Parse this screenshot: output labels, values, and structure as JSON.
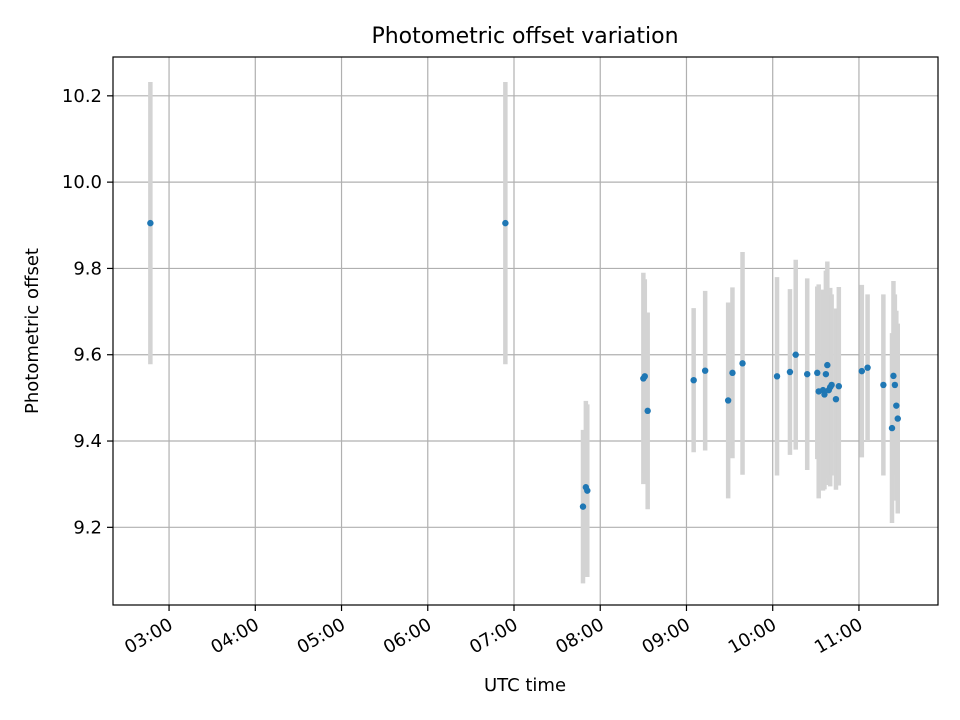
{
  "chart_data": {
    "type": "scatter",
    "title": "Photometric offset variation",
    "xlabel": "UTC time",
    "ylabel": "Photometric offset",
    "x_ticks": [
      "03:00",
      "04:00",
      "05:00",
      "06:00",
      "07:00",
      "08:00",
      "09:00",
      "10:00",
      "11:00"
    ],
    "y_ticks": [
      "9.2",
      "9.4",
      "9.6",
      "9.8",
      "10.0",
      "10.2"
    ],
    "y_tick_values": [
      9.2,
      9.4,
      9.6,
      9.8,
      10.0,
      10.2
    ],
    "xlim": [
      "02:21",
      "11:55"
    ],
    "ylim": [
      9.02,
      10.29
    ],
    "grid": true,
    "colors": {
      "marker": "#1f77b4",
      "errorbar": "#d3d3d3"
    },
    "points": [
      {
        "x": "02:47",
        "y": 9.905,
        "err": 0.327
      },
      {
        "x": "06:54",
        "y": 9.905,
        "err": 0.327
      },
      {
        "x": "07:48",
        "y": 9.248,
        "err": 0.178
      },
      {
        "x": "07:50",
        "y": 9.293,
        "err": 0.2
      },
      {
        "x": "07:51",
        "y": 9.285,
        "err": 0.2
      },
      {
        "x": "08:30",
        "y": 9.545,
        "err": 0.245
      },
      {
        "x": "08:31",
        "y": 9.55,
        "err": 0.225
      },
      {
        "x": "08:33",
        "y": 9.47,
        "err": 0.228
      },
      {
        "x": "09:05",
        "y": 9.541,
        "err": 0.167
      },
      {
        "x": "09:13",
        "y": 9.563,
        "err": 0.185
      },
      {
        "x": "09:29",
        "y": 9.494,
        "err": 0.227
      },
      {
        "x": "09:32",
        "y": 9.558,
        "err": 0.198
      },
      {
        "x": "09:39",
        "y": 9.58,
        "err": 0.258
      },
      {
        "x": "10:03",
        "y": 9.55,
        "err": 0.23
      },
      {
        "x": "10:12",
        "y": 9.56,
        "err": 0.192
      },
      {
        "x": "10:16",
        "y": 9.6,
        "err": 0.22
      },
      {
        "x": "10:24",
        "y": 9.555,
        "err": 0.222
      },
      {
        "x": "10:31",
        "y": 9.558,
        "err": 0.2
      },
      {
        "x": "10:32",
        "y": 9.515,
        "err": 0.248
      },
      {
        "x": "10:35",
        "y": 9.518,
        "err": 0.233
      },
      {
        "x": "10:36",
        "y": 9.508,
        "err": 0.22
      },
      {
        "x": "10:37",
        "y": 9.555,
        "err": 0.24
      },
      {
        "x": "10:38",
        "y": 9.576,
        "err": 0.24
      },
      {
        "x": "10:39",
        "y": 9.518,
        "err": 0.22
      },
      {
        "x": "10:40",
        "y": 9.525,
        "err": 0.23
      },
      {
        "x": "10:41",
        "y": 9.53,
        "err": 0.21
      },
      {
        "x": "10:44",
        "y": 9.497,
        "err": 0.21
      },
      {
        "x": "10:46",
        "y": 9.527,
        "err": 0.23
      },
      {
        "x": "11:02",
        "y": 9.562,
        "err": 0.2
      },
      {
        "x": "11:06",
        "y": 9.57,
        "err": 0.17
      },
      {
        "x": "11:17",
        "y": 9.53,
        "err": 0.21
      },
      {
        "x": "11:23",
        "y": 9.43,
        "err": 0.22
      },
      {
        "x": "11:24",
        "y": 9.551,
        "err": 0.22
      },
      {
        "x": "11:25",
        "y": 9.53,
        "err": 0.21
      },
      {
        "x": "11:26",
        "y": 9.482,
        "err": 0.22
      },
      {
        "x": "11:27",
        "y": 9.452,
        "err": 0.22
      }
    ]
  }
}
